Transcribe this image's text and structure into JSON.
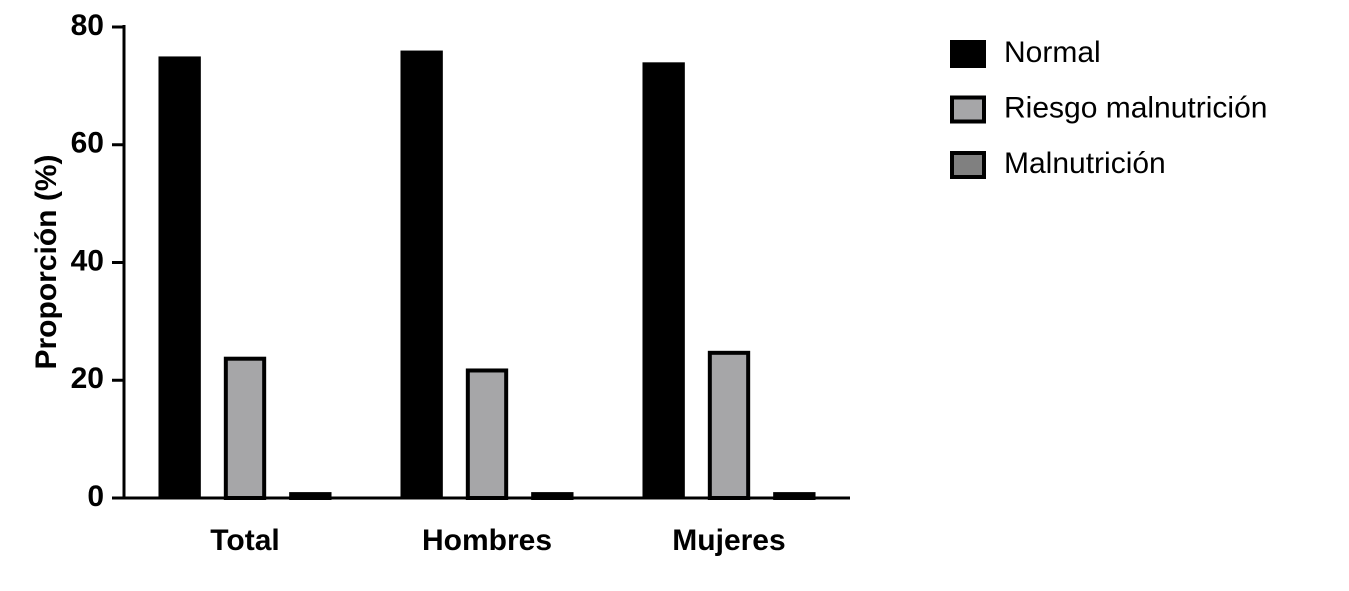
{
  "chart_data": {
    "type": "bar",
    "y_label": "Proporción (%)",
    "categories": [
      "Total",
      "Hombres",
      "Mujeres"
    ],
    "series": [
      {
        "name": "Normal",
        "color": "#000000",
        "values": [
          75,
          76,
          74
        ]
      },
      {
        "name": "Riesgo malnutrición",
        "color": "#a6a6a8",
        "values": [
          24,
          22,
          25
        ]
      },
      {
        "name": "Malnutrición",
        "color": "#808080",
        "values": [
          1,
          1,
          1
        ]
      }
    ],
    "ylim": [
      0,
      80
    ],
    "yticks": [
      0,
      20,
      40,
      60,
      80
    ],
    "grid": false
  }
}
